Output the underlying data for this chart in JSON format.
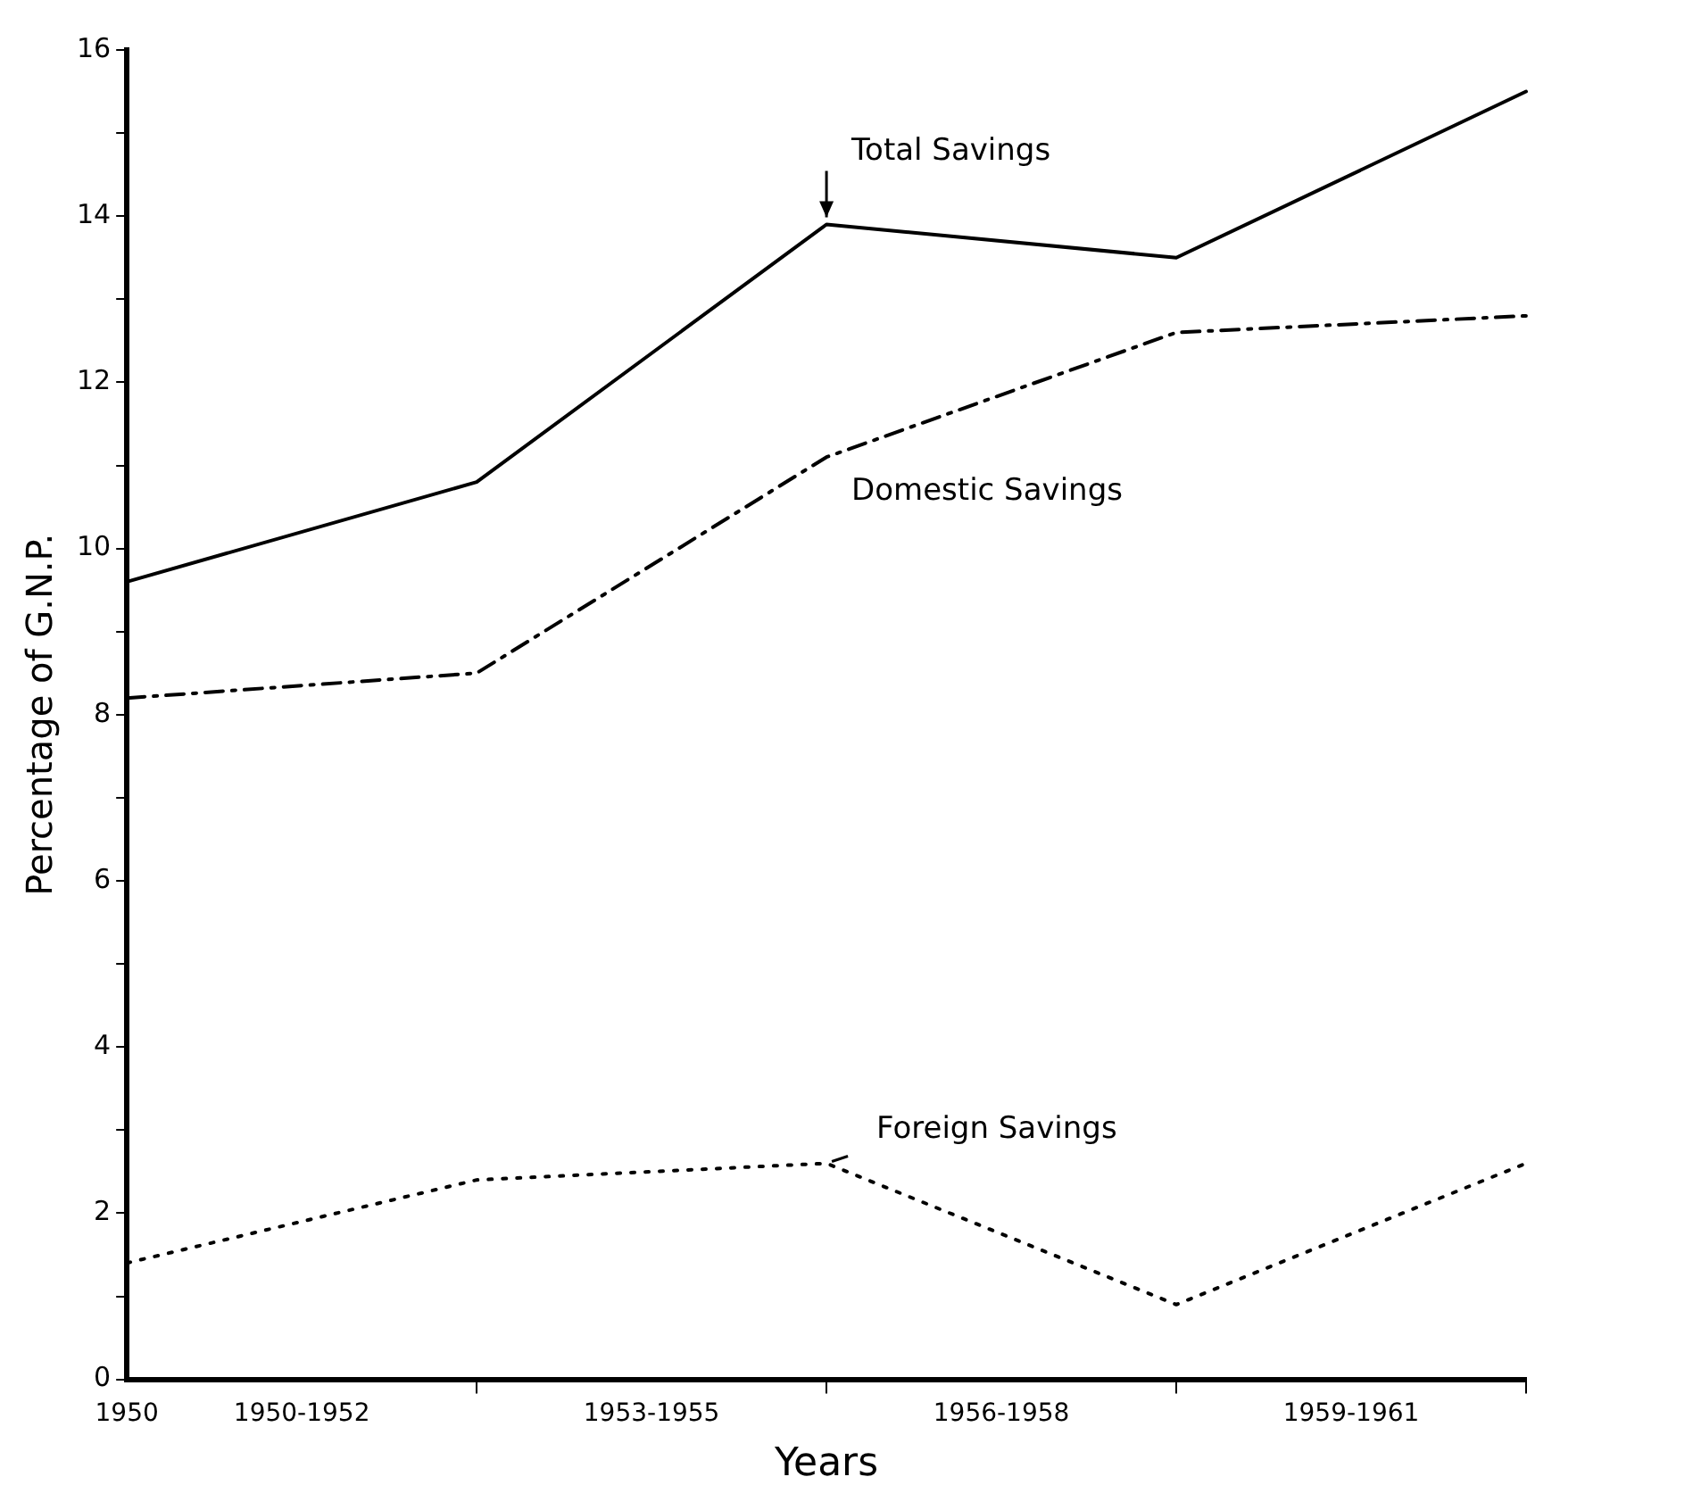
{
  "chart_data": {
    "type": "line",
    "xlabel": "Years",
    "ylabel": "Percentage of G.N.P.",
    "categories": [
      "1950",
      "1950-1952",
      null,
      "1953-1955",
      null,
      "1956-1958",
      null,
      "1959-1961",
      null
    ],
    "series": [
      {
        "name": "Total Savings",
        "color": "#000000",
        "line_style": "solid",
        "values": [
          9.6,
          null,
          10.8,
          null,
          13.9,
          null,
          13.5,
          null,
          15.5
        ]
      },
      {
        "name": "Domestic Savings",
        "color": "#000000",
        "line_style": "dashed",
        "values": [
          8.2,
          null,
          8.5,
          null,
          11.1,
          null,
          12.6,
          null,
          12.8
        ]
      },
      {
        "name": "Foreign Savings",
        "color": "#000000",
        "line_style": "dotted",
        "values": [
          1.4,
          null,
          2.4,
          null,
          2.6,
          null,
          0.9,
          null,
          2.6
        ]
      }
    ],
    "ylim": [
      0,
      16
    ],
    "yticks": [
      0,
      {
        "value": 1,
        "label": null
      },
      2,
      {
        "value": 3,
        "label": null
      },
      4,
      {
        "value": 5,
        "label": null
      },
      6,
      {
        "value": 7,
        "label": null
      },
      8,
      {
        "value": 9,
        "label": null
      },
      10,
      {
        "value": 11,
        "label": null
      },
      12,
      {
        "value": 13,
        "label": null
      },
      14,
      {
        "value": 15,
        "label": null
      },
      16
    ],
    "grid": false,
    "legend": false,
    "marker": "none"
  }
}
